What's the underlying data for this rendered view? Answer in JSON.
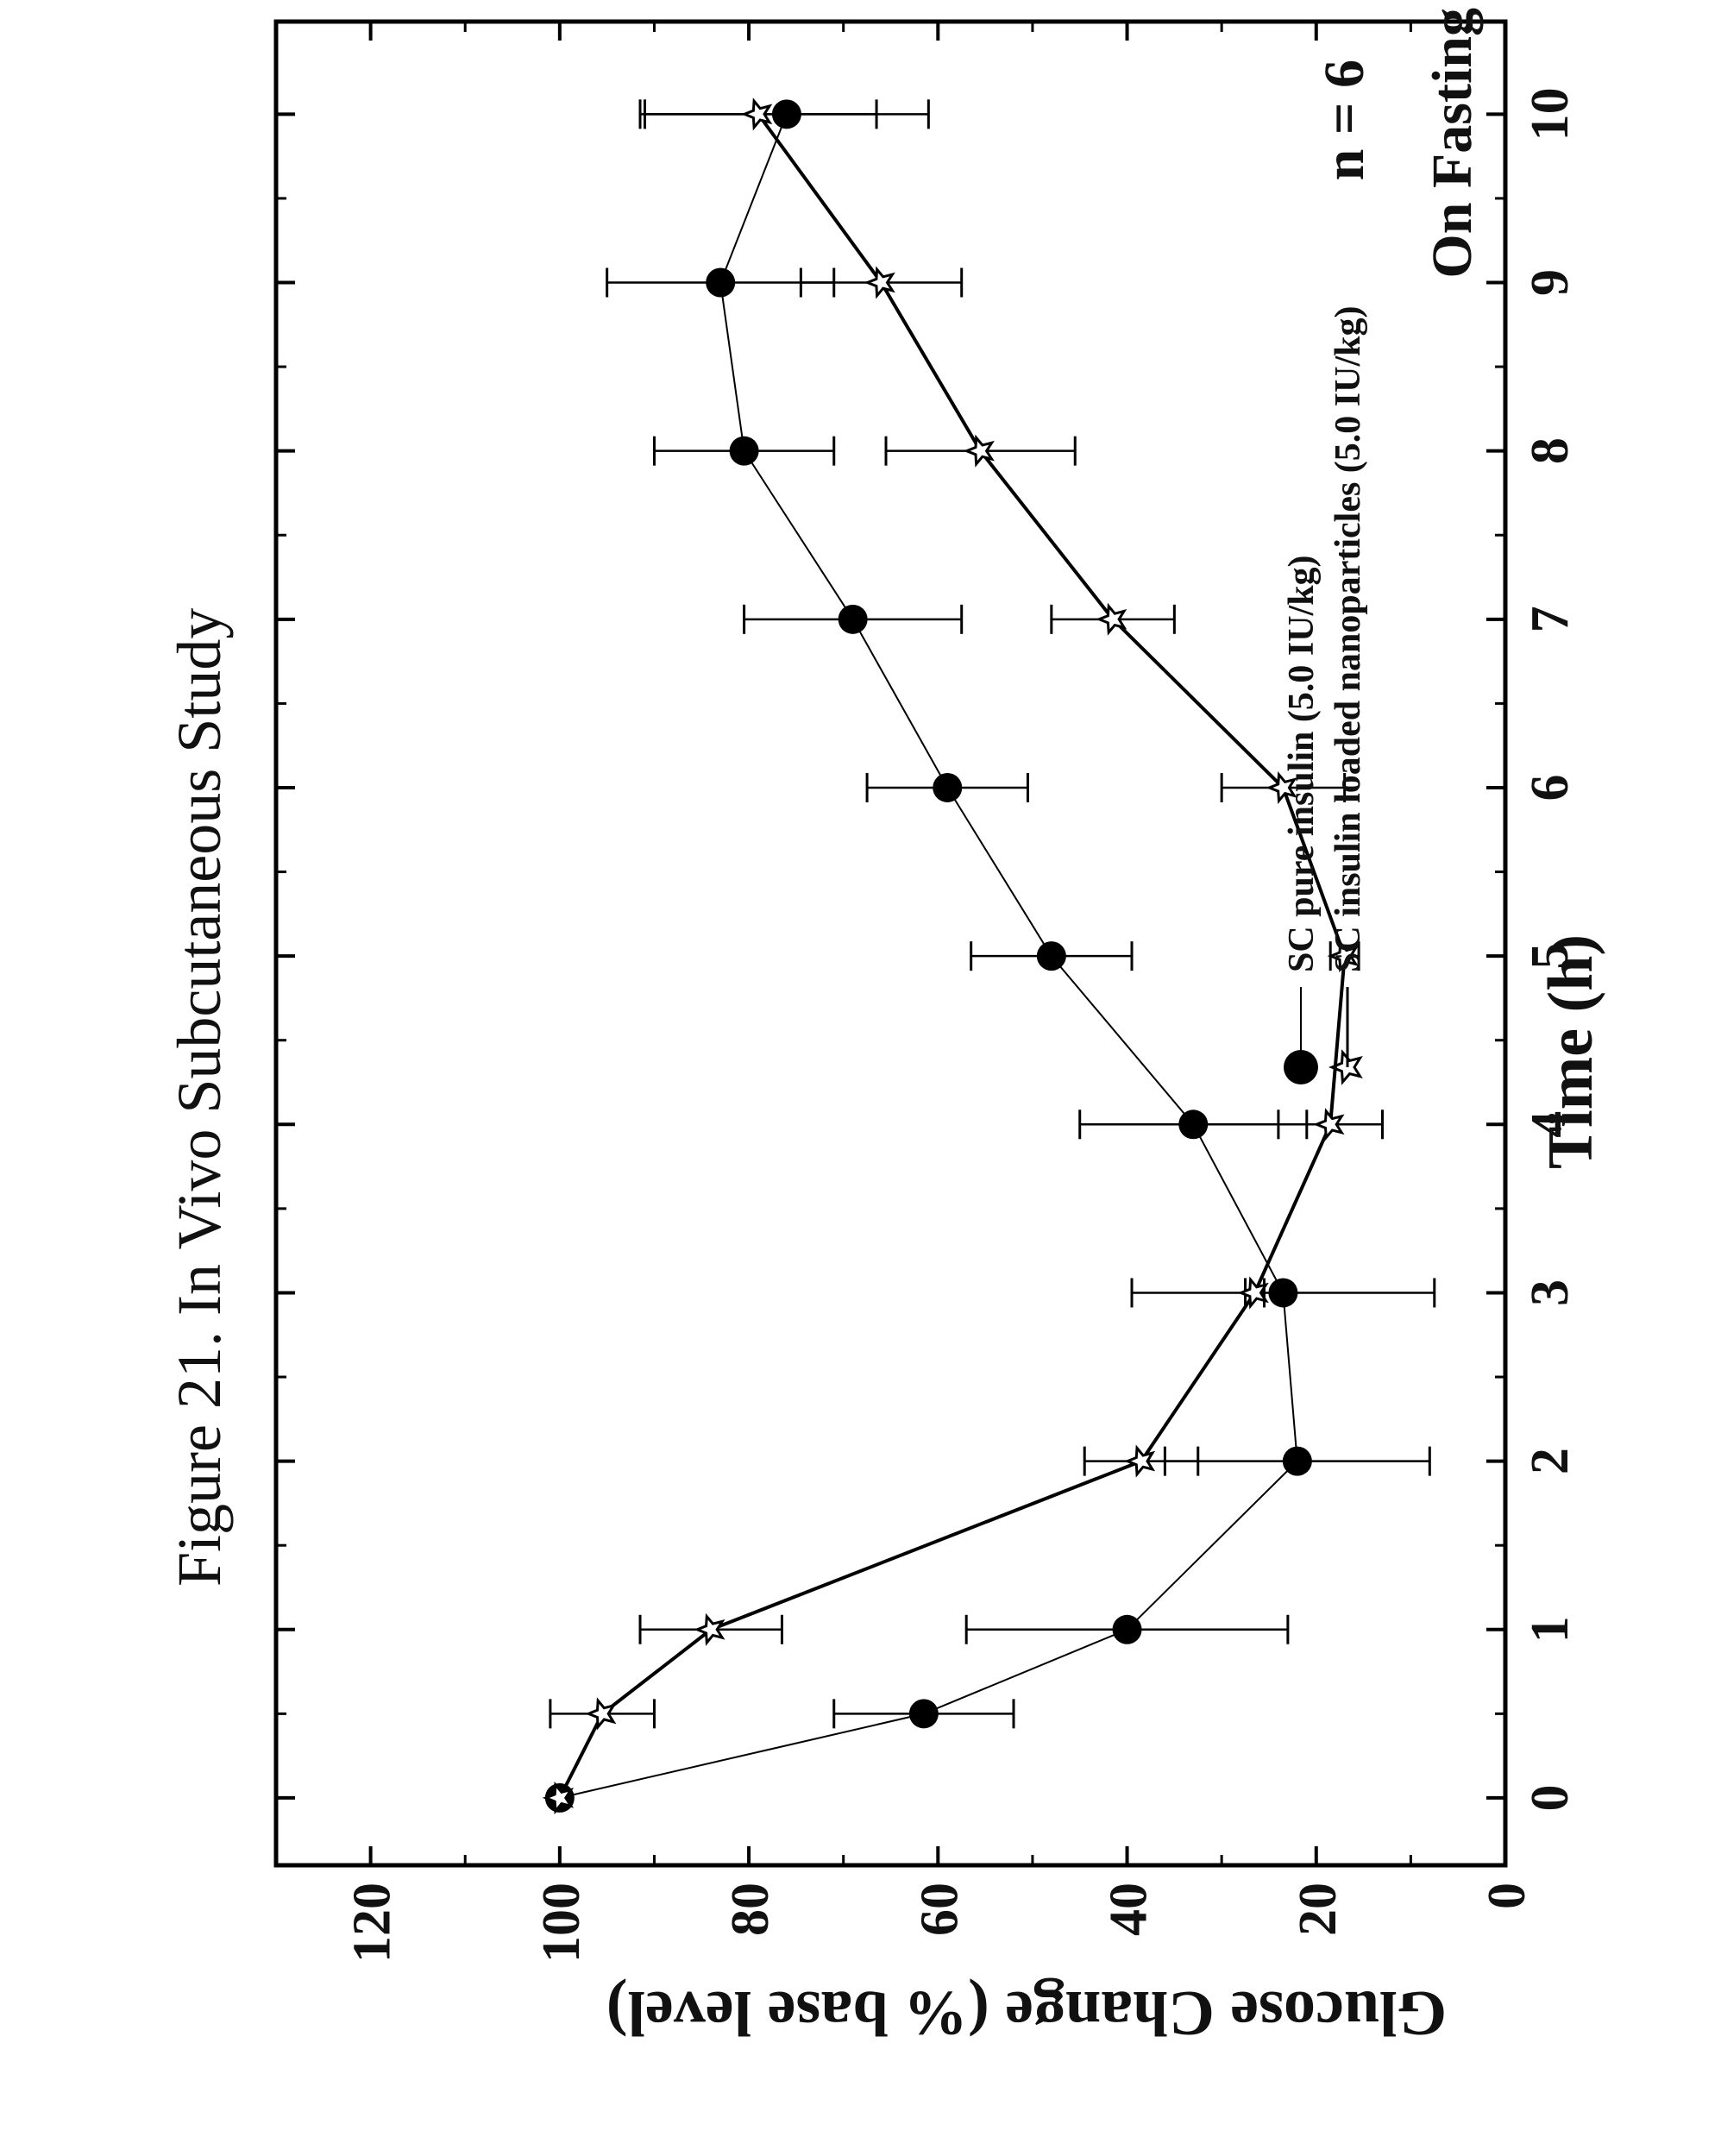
{
  "figure_caption": "Figure 21. In Vivo Subcutaneous Study",
  "chart_data": {
    "type": "line",
    "xlabel": "Time (h)",
    "ylabel": "Glucose Change (% base level)",
    "xlim": [
      -0.4,
      10.55
    ],
    "ylim": [
      0,
      130
    ],
    "x_ticks": [
      0,
      1,
      2,
      3,
      4,
      5,
      6,
      7,
      8,
      9,
      10
    ],
    "y_ticks": [
      0,
      20,
      40,
      60,
      80,
      100,
      120
    ],
    "grid": false,
    "legend_position": "top-left",
    "annotations": [
      "On Fasting",
      "n = 6"
    ],
    "series": [
      {
        "name": "SC pure insulin (5.0 IU/kg)",
        "marker": "filled-circle",
        "color": "#000000",
        "x": [
          0,
          0.5,
          1,
          2,
          3,
          4,
          5,
          6,
          7,
          8,
          9,
          10
        ],
        "y": [
          100,
          61.5,
          40,
          22,
          23.5,
          33,
          48,
          59,
          69,
          80.5,
          83,
          76
        ],
        "err": [
          0,
          9.5,
          17,
          14,
          16,
          12,
          8.5,
          8.5,
          11.5,
          9.5,
          12,
          15
        ]
      },
      {
        "name": "SC insulin loaded nanoparticles (5.0 IU/kg)",
        "marker": "star",
        "color": "#000000",
        "x": [
          0,
          0.5,
          1,
          2,
          3,
          4,
          5,
          6,
          7,
          8,
          9,
          10
        ],
        "y": [
          100,
          95.5,
          84,
          38.5,
          26.5,
          18.5,
          17,
          23.5,
          41.5,
          55.5,
          66,
          79
        ],
        "err": [
          0,
          5.5,
          7.5,
          6,
          1,
          5.5,
          1.5,
          6.5,
          6.5,
          10,
          8.5,
          12.5
        ]
      }
    ]
  }
}
